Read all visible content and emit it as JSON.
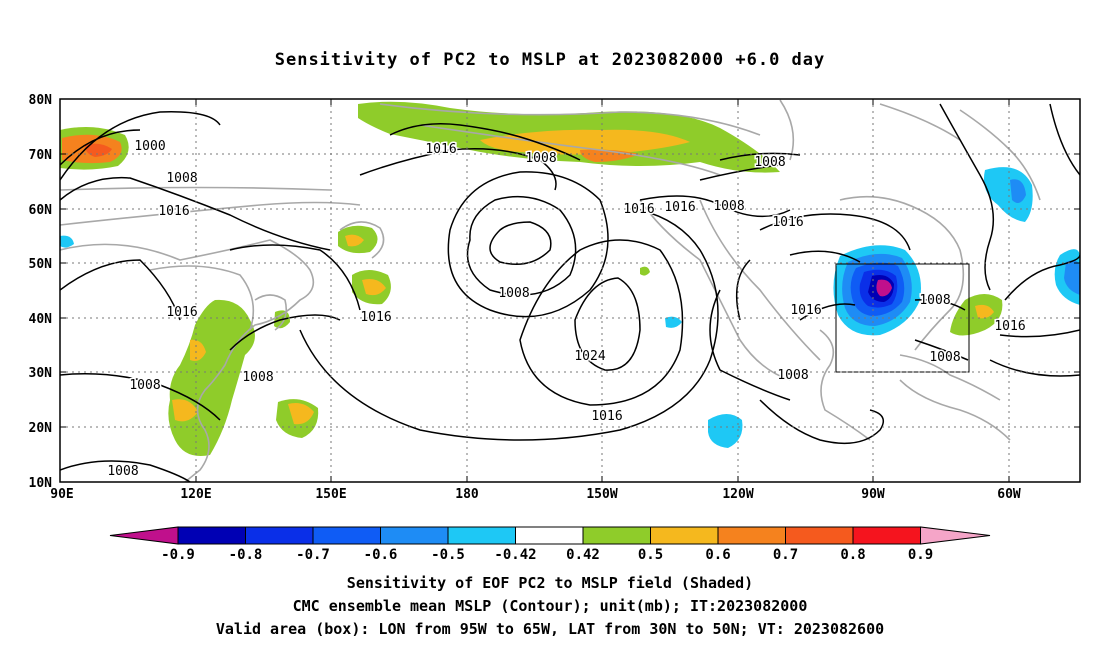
{
  "title": "Sensitivity of PC2 to MSLP at 2023082000 +6.0 day",
  "map": {
    "lon_labels": [
      "90E",
      "120E",
      "150E",
      "180",
      "150W",
      "120W",
      "90W",
      "60W"
    ],
    "lat_labels": [
      "80N",
      "70N",
      "60N",
      "50N",
      "40N",
      "30N",
      "20N",
      "10N"
    ],
    "contour_labels": [
      "1000",
      "1008",
      "1016",
      "1016",
      "1008",
      "1016",
      "1008",
      "1016",
      "1016",
      "1008",
      "1016",
      "1008",
      "1024",
      "1016",
      "1008",
      "1008",
      "1016",
      "1016",
      "1008",
      "1008",
      "1016",
      "1008",
      "1008"
    ],
    "contour_unit": "mb",
    "valid_box": {
      "lon_from": "95W",
      "lon_to": "65W",
      "lat_from": "30N",
      "lat_to": "50N"
    }
  },
  "colorbar": {
    "labels": [
      "-0.9",
      "-0.8",
      "-0.7",
      "-0.6",
      "-0.5",
      "-0.42",
      "0.42",
      "0.5",
      "0.6",
      "0.7",
      "0.8",
      "0.9"
    ],
    "colors": {
      "low_tip": "#c0108c",
      "bins": [
        "#0000b4",
        "#0a2fe8",
        "#0f5cf5",
        "#1e8cf5",
        "#1ec8f5",
        "#ffffff",
        "#8fcc2a",
        "#f5b81e",
        "#f5821e",
        "#f55a1e",
        "#f5141e"
      ],
      "high_tip": "#f5a5c8"
    }
  },
  "captions": [
    "Sensitivity of EOF PC2 to MSLP field (Shaded)",
    "CMC ensemble mean MSLP (Contour); unit(mb); IT:2023082000",
    "Valid area (box): LON from 95W to 65W, LAT from 30N to 50N; VT: 2023082600"
  ]
}
